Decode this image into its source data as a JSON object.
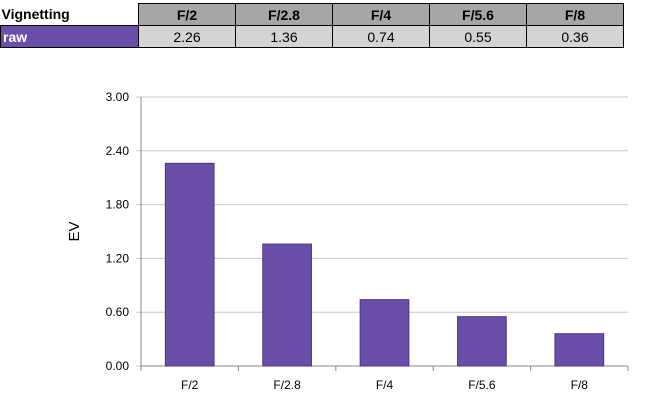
{
  "table": {
    "corner_label": "Vignetting",
    "columns": [
      "F/2",
      "F/2.8",
      "F/4",
      "F/5.6",
      "F/8"
    ],
    "row_label": "raw",
    "values": [
      "2.26",
      "1.36",
      "0.74",
      "0.55",
      "0.36"
    ]
  },
  "colors": {
    "bar": "#6a4fa8",
    "bar_border": "#4b3480",
    "header_fill": "#a6a6a6",
    "cell_fill": "#d4d4d4",
    "grid": "#c8c8c8"
  },
  "chart_data": {
    "type": "bar",
    "title": "",
    "xlabel": "",
    "ylabel": "EV",
    "categories": [
      "F/2",
      "F/2.8",
      "F/4",
      "F/5.6",
      "F/8"
    ],
    "values": [
      2.26,
      1.36,
      0.74,
      0.55,
      0.36
    ],
    "ylim": [
      0,
      3.0
    ],
    "yticks": [
      "0.00",
      "0.60",
      "1.20",
      "1.80",
      "2.40",
      "3.00"
    ],
    "grid": true,
    "legend": "none"
  }
}
